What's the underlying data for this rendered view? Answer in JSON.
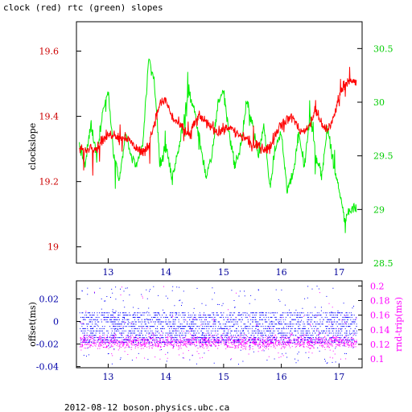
{
  "title": "clock (red) rtc (green) slopes",
  "footer": "2012-08-12 boson.physics.ubc.ca",
  "colors": {
    "clock": "#ff0000",
    "rtc": "#00ee00",
    "offset": "#0000ff",
    "roundtrip": "#ff00ff",
    "frame": "#000000"
  },
  "chart_data": [
    {
      "type": "line",
      "title": "clock (red) rtc (green) slopes",
      "ylabel": "clockslope",
      "x_ticks": [
        "13",
        "14",
        "15",
        "16",
        "17"
      ],
      "xlim": [
        12.45,
        17.4
      ],
      "left_axis": {
        "ticks": [
          "19",
          "19.2",
          "19.4",
          "19.6"
        ],
        "ylim": [
          18.95,
          19.69
        ]
      },
      "right_axis": {
        "ticks": [
          "28.5",
          "29",
          "29.5",
          "30",
          "30.5"
        ],
        "ylim": [
          28.5,
          30.75
        ]
      },
      "series": [
        {
          "name": "clock",
          "axis": "left",
          "x": [
            12.5,
            12.6,
            12.7,
            12.8,
            12.9,
            13.0,
            13.1,
            13.2,
            13.3,
            13.4,
            13.5,
            13.6,
            13.7,
            13.8,
            13.9,
            14.0,
            14.1,
            14.2,
            14.3,
            14.4,
            14.5,
            14.6,
            14.7,
            14.8,
            14.9,
            15.0,
            15.1,
            15.2,
            15.3,
            15.4,
            15.5,
            15.6,
            15.7,
            15.8,
            15.9,
            16.0,
            16.1,
            16.2,
            16.3,
            16.4,
            16.5,
            16.6,
            16.7,
            16.8,
            16.9,
            17.0,
            17.1,
            17.2,
            17.3
          ],
          "y": [
            19.3,
            19.29,
            19.31,
            19.3,
            19.33,
            19.34,
            19.35,
            19.33,
            19.34,
            19.32,
            19.3,
            19.29,
            19.31,
            19.38,
            19.44,
            19.45,
            19.4,
            19.38,
            19.36,
            19.34,
            19.38,
            19.4,
            19.38,
            19.37,
            19.35,
            19.36,
            19.37,
            19.35,
            19.34,
            19.33,
            19.31,
            19.31,
            19.3,
            19.3,
            19.35,
            19.38,
            19.39,
            19.4,
            19.36,
            19.35,
            19.38,
            19.42,
            19.37,
            19.36,
            19.39,
            19.46,
            19.5,
            19.51,
            19.5
          ]
        },
        {
          "name": "rtc",
          "axis": "right",
          "x": [
            12.5,
            12.6,
            12.7,
            12.8,
            12.9,
            13.0,
            13.1,
            13.2,
            13.3,
            13.4,
            13.5,
            13.6,
            13.7,
            13.8,
            13.9,
            14.0,
            14.1,
            14.2,
            14.3,
            14.4,
            14.5,
            14.6,
            14.7,
            14.8,
            14.9,
            15.0,
            15.1,
            15.2,
            15.3,
            15.4,
            15.5,
            15.6,
            15.7,
            15.8,
            15.9,
            16.0,
            16.1,
            16.2,
            16.3,
            16.4,
            16.5,
            16.6,
            16.7,
            16.8,
            16.9,
            17.0,
            17.1,
            17.2,
            17.3
          ],
          "y": [
            29.6,
            29.4,
            29.8,
            29.5,
            29.9,
            30.1,
            29.5,
            29.3,
            29.7,
            29.5,
            29.4,
            29.6,
            30.4,
            30.2,
            29.4,
            29.6,
            29.3,
            29.5,
            29.8,
            30.1,
            29.9,
            29.6,
            29.3,
            29.5,
            30.0,
            30.1,
            29.7,
            29.4,
            29.6,
            30.0,
            29.8,
            29.5,
            29.8,
            29.2,
            29.6,
            29.7,
            29.2,
            29.3,
            29.7,
            29.4,
            29.9,
            29.5,
            29.3,
            29.8,
            29.4,
            29.2,
            28.9,
            29.0,
            29.0
          ]
        }
      ],
      "legend": "none",
      "grid": false
    },
    {
      "type": "scatter",
      "ylabel_left": "offset(ms)",
      "ylabel_right": "rnd-trip(ms)",
      "x_ticks": [
        "13",
        "14",
        "15",
        "16",
        "17"
      ],
      "xlim": [
        12.45,
        17.4
      ],
      "left_axis": {
        "ticks": [
          "-0.04",
          "-0.02",
          "0",
          "0.02"
        ],
        "ylim": [
          -0.041,
          0.036
        ]
      },
      "right_axis": {
        "ticks": [
          "0.1",
          "0.12",
          "0.14",
          "0.16",
          "0.18",
          "0.2"
        ],
        "ylim": [
          0.088,
          0.207
        ]
      },
      "series": [
        {
          "name": "offset",
          "axis": "left",
          "x_range": [
            12.5,
            17.3
          ],
          "band": {
            "min": -0.018,
            "max": 0.008,
            "level_step": 0.002
          },
          "outliers": {
            "min": -0.038,
            "max": 0.032
          }
        },
        {
          "name": "rnd-trip",
          "axis": "right",
          "x_range": [
            12.5,
            17.3
          ],
          "band": {
            "min": 0.112,
            "max": 0.135,
            "center": 0.124
          },
          "outliers": {
            "min": 0.1,
            "max": 0.2
          }
        }
      ],
      "legend": "none",
      "grid": false
    }
  ]
}
